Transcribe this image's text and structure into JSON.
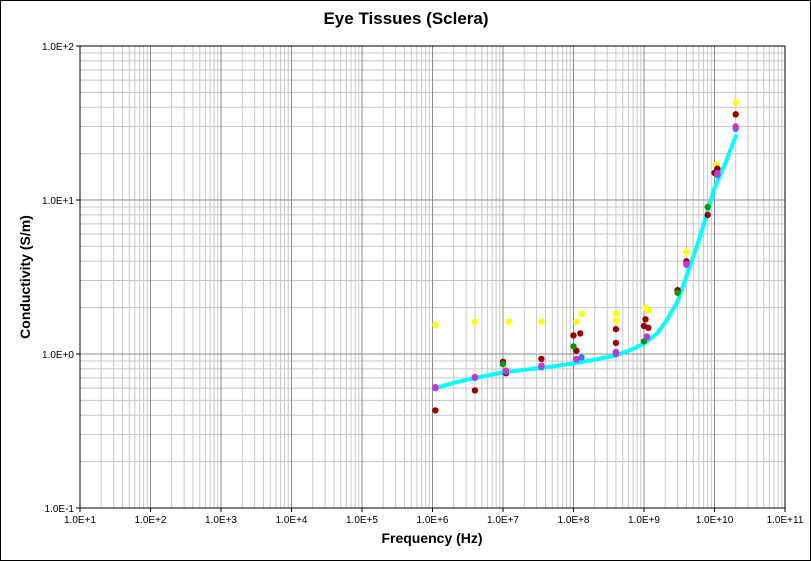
{
  "chart_data": {
    "type": "scatter",
    "title": "Eye Tissues (Sclera)",
    "xlabel": "Frequency (Hz)",
    "ylabel": "Conductivity (S/m)",
    "xscale": "log",
    "yscale": "log",
    "xlim": [
      10,
      100000000000
    ],
    "ylim": [
      0.1,
      100
    ],
    "grid": true,
    "legend": "none",
    "x_tick_labels": [
      "1.0E+1",
      "1.0E+2",
      "1.0E+3",
      "1.0E+4",
      "1.0E+5",
      "1.0E+6",
      "1.0E+7",
      "1.0E+8",
      "1.0E+9",
      "1.0E+10",
      "1.0E+11"
    ],
    "y_tick_labels": [
      "1.0E-1",
      "1.0E+0",
      "1.0E+1",
      "1.0E+2"
    ],
    "series": [
      {
        "name": "Model fit",
        "kind": "line",
        "color": "#00ffff",
        "points": [
          [
            1100000.0,
            0.6
          ],
          [
            2000000.0,
            0.65
          ],
          [
            4000000.0,
            0.7
          ],
          [
            10000000.0,
            0.76
          ],
          [
            20000000.0,
            0.79
          ],
          [
            50000000.0,
            0.83
          ],
          [
            100000000.0,
            0.87
          ],
          [
            200000000.0,
            0.92
          ],
          [
            400000000.0,
            0.98
          ],
          [
            700000000.0,
            1.08
          ],
          [
            1000000000.0,
            1.17
          ],
          [
            1500000000.0,
            1.35
          ],
          [
            2000000000.0,
            1.6
          ],
          [
            3000000000.0,
            2.2
          ],
          [
            4000000000.0,
            3.2
          ],
          [
            6000000000.0,
            5.5
          ],
          [
            8000000000.0,
            8.5
          ],
          [
            10000000000.0,
            12
          ],
          [
            14000000000.0,
            17
          ],
          [
            20000000000.0,
            26
          ]
        ]
      },
      {
        "name": "Yellow data",
        "kind": "points",
        "color": "#ffff00",
        "points": [
          [
            1100000.0,
            1.55
          ],
          [
            4000000.0,
            1.62
          ],
          [
            12000000.0,
            1.62
          ],
          [
            35000000.0,
            1.62
          ],
          [
            110000000.0,
            1.62
          ],
          [
            130000000.0,
            1.82
          ],
          [
            400000000.0,
            1.83
          ],
          [
            400000000.0,
            1.65
          ],
          [
            1050000000.0,
            2.0
          ],
          [
            1150000000.0,
            1.92
          ],
          [
            4000000000.0,
            4.6
          ],
          [
            10500000000.0,
            17
          ],
          [
            20000000000.0,
            43
          ]
        ]
      },
      {
        "name": "Dark red data",
        "kind": "points",
        "color": "#990000",
        "points": [
          [
            1100000.0,
            0.43
          ],
          [
            4000000.0,
            0.58
          ],
          [
            10000000.0,
            0.89
          ],
          [
            11000000.0,
            0.75
          ],
          [
            35000000.0,
            0.93
          ],
          [
            100000000.0,
            1.32
          ],
          [
            110000000.0,
            1.05
          ],
          [
            125000000.0,
            1.36
          ],
          [
            400000000.0,
            1.45
          ],
          [
            400000000.0,
            1.18
          ],
          [
            1000000000.0,
            1.52
          ],
          [
            1050000000.0,
            1.68
          ],
          [
            1150000000.0,
            1.48
          ],
          [
            3000000000.0,
            2.6
          ],
          [
            4000000000.0,
            4.0
          ],
          [
            8000000000.0,
            8.0
          ],
          [
            10000000000.0,
            15
          ],
          [
            11000000000.0,
            16
          ],
          [
            20000000000.0,
            36
          ]
        ]
      },
      {
        "name": "Green data",
        "kind": "points",
        "color": "#009900",
        "points": [
          [
            10000000.0,
            0.86
          ],
          [
            100000000.0,
            1.12
          ],
          [
            1000000000.0,
            1.21
          ],
          [
            3000000000.0,
            2.5
          ],
          [
            8000000000.0,
            9.0
          ]
        ]
      },
      {
        "name": "Blue data",
        "kind": "points",
        "color": "#3377ff",
        "points": [
          [
            1100000.0,
            0.6
          ],
          [
            4000000.0,
            0.7
          ],
          [
            11000000.0,
            0.77
          ],
          [
            35000000.0,
            0.82
          ],
          [
            110000000.0,
            0.92
          ],
          [
            130000000.0,
            0.95
          ],
          [
            400000000.0,
            1.0
          ],
          [
            400000000.0,
            1.03
          ],
          [
            1100000000.0,
            1.28
          ],
          [
            4000000000.0,
            3.8
          ],
          [
            11000000000.0,
            14.5
          ],
          [
            20000000000.0,
            29
          ]
        ]
      },
      {
        "name": "Magenta data",
        "kind": "points",
        "color": "#cc33cc",
        "points": [
          [
            1100000.0,
            0.61
          ],
          [
            4000000.0,
            0.71
          ],
          [
            11000000.0,
            0.78
          ],
          [
            35000000.0,
            0.84
          ],
          [
            110000000.0,
            0.93
          ],
          [
            400000000.0,
            1.02
          ],
          [
            1100000000.0,
            1.3
          ],
          [
            4000000000.0,
            3.85
          ],
          [
            11000000000.0,
            15
          ],
          [
            20000000000.0,
            30
          ]
        ]
      }
    ]
  }
}
